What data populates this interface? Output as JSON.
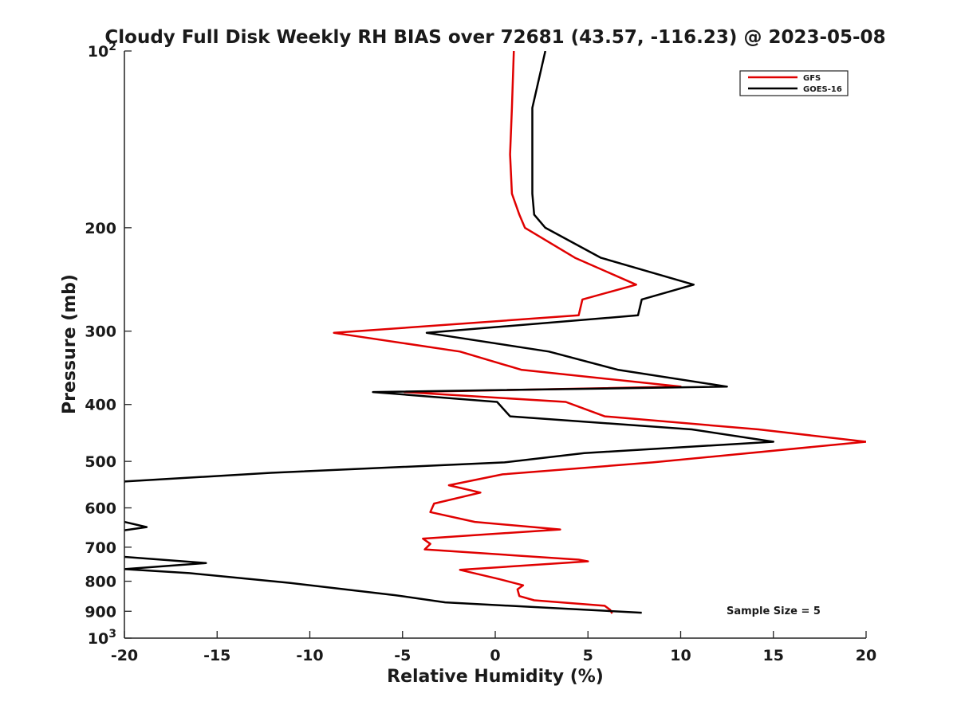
{
  "chart_data": {
    "type": "line",
    "title": "Cloudy Full Disk Weekly RH BIAS over 72681 (43.57, -116.23) @ 2023-05-08",
    "xlabel": "Relative Humidity (%)",
    "ylabel": "Pressure (mb)",
    "xlim": [
      -20,
      20
    ],
    "ylim": [
      100,
      1000
    ],
    "yscale": "log",
    "y_reversed": true,
    "x_ticks": [
      "-20",
      "-15",
      "-10",
      "-5",
      "0",
      "5",
      "10",
      "15",
      "20"
    ],
    "y_ticks": [
      {
        "value": 100,
        "base": "10",
        "exp": "2"
      },
      {
        "value": 200,
        "label": "200"
      },
      {
        "value": 300,
        "label": "300"
      },
      {
        "value": 400,
        "label": "400"
      },
      {
        "value": 500,
        "label": "500"
      },
      {
        "value": 600,
        "label": "600"
      },
      {
        "value": 700,
        "label": "700"
      },
      {
        "value": 800,
        "label": "800"
      },
      {
        "value": 900,
        "label": "900"
      },
      {
        "value": 1000,
        "base": "10",
        "exp": "3"
      }
    ],
    "legend_position": "top-right",
    "grid": false,
    "annotation": "Sample Size = 5",
    "series": [
      {
        "name": "GFS",
        "color": "#e00000",
        "points": [
          [
            1.0,
            100
          ],
          [
            0.9,
            125
          ],
          [
            0.8,
            150
          ],
          [
            0.9,
            175
          ],
          [
            1.3,
            190
          ],
          [
            1.6,
            200
          ],
          [
            4.3,
            225
          ],
          [
            7.6,
            250
          ],
          [
            4.7,
            265
          ],
          [
            4.5,
            282
          ],
          [
            -8.7,
            302
          ],
          [
            -1.9,
            325
          ],
          [
            1.4,
            349
          ],
          [
            10.0,
            373
          ],
          [
            -4.9,
            381
          ],
          [
            3.8,
            396
          ],
          [
            5.9,
            419
          ],
          [
            14.2,
            441
          ],
          [
            20.0,
            463
          ],
          [
            8.5,
            502
          ],
          [
            0.4,
            526
          ],
          [
            -2.5,
            549
          ],
          [
            -0.8,
            565
          ],
          [
            -3.3,
            590
          ],
          [
            -3.5,
            610
          ],
          [
            -1.1,
            634
          ],
          [
            3.5,
            653
          ],
          [
            -3.9,
            677
          ],
          [
            -3.5,
            691
          ],
          [
            -3.8,
            706
          ],
          [
            4.5,
            735
          ],
          [
            5.0,
            740
          ],
          [
            -1.9,
            765
          ],
          [
            0.2,
            793
          ],
          [
            1.5,
            813
          ],
          [
            1.2,
            826
          ],
          [
            1.3,
            848
          ],
          [
            2.1,
            862
          ],
          [
            5.9,
            881
          ],
          [
            6.2,
            895
          ],
          [
            6.3,
            908
          ]
        ]
      },
      {
        "name": "GOES-16",
        "color": "#000000",
        "points": [
          [
            2.7,
            100
          ],
          [
            2.0,
            125
          ],
          [
            2.0,
            150
          ],
          [
            2.0,
            175
          ],
          [
            2.1,
            190
          ],
          [
            2.7,
            200
          ],
          [
            5.7,
            225
          ],
          [
            10.7,
            250
          ],
          [
            7.9,
            265
          ],
          [
            7.7,
            282
          ],
          [
            -3.7,
            302
          ],
          [
            2.9,
            325
          ],
          [
            6.6,
            349
          ],
          [
            12.5,
            373
          ],
          [
            -6.6,
            381
          ],
          [
            0.1,
            396
          ],
          [
            0.8,
            419
          ],
          [
            10.6,
            441
          ],
          [
            15.0,
            463
          ],
          [
            4.8,
            484
          ],
          [
            0.5,
            502
          ],
          [
            -12.1,
            523
          ],
          [
            -20.0,
            541
          ],
          [
            -20.5,
            610
          ],
          [
            -20.0,
            634
          ],
          [
            -18.8,
            647
          ],
          [
            -20.0,
            655
          ],
          [
            -20.5,
            680
          ],
          [
            -20.0,
            727
          ],
          [
            -15.6,
            745
          ],
          [
            -20.0,
            763
          ],
          [
            -16.5,
            775
          ],
          [
            -11.1,
            805
          ],
          [
            -5.4,
            845
          ],
          [
            -2.7,
            869
          ],
          [
            7.9,
            905
          ]
        ]
      }
    ]
  }
}
